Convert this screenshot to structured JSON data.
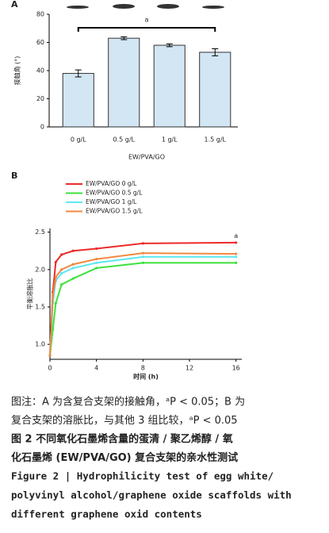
{
  "chart_data": [
    {
      "type": "bar",
      "panel": "A",
      "ylabel": "接触角 (°)",
      "xlabel": "EW/PVA/GO",
      "annotation": "a",
      "categories": [
        "0 g/L",
        "0.5 g/L",
        "1 g/L",
        "1.5 g/L"
      ],
      "values": [
        38,
        63,
        58,
        53
      ],
      "errors": [
        2.5,
        1,
        1,
        2.5
      ],
      "color": "#d3e6f4",
      "ylim": [
        0,
        80
      ],
      "yticks": [
        0,
        20,
        40,
        60,
        80
      ]
    },
    {
      "type": "line",
      "panel": "B",
      "ylabel": "平衡溶胀比",
      "xlabel": "时间 (h)",
      "annotation": "a",
      "x": [
        0,
        0.25,
        0.5,
        1,
        2,
        4,
        8,
        16
      ],
      "series": [
        {
          "name": "EW/PVA/GO 0 g/L",
          "color": "#ee2a2a",
          "values": [
            0.85,
            1.7,
            2.1,
            2.2,
            2.25,
            2.28,
            2.35,
            2.36
          ]
        },
        {
          "name": "EW/PVA/GO 0.5 g/L",
          "color": "#3ee03e",
          "values": [
            0.85,
            1.2,
            1.55,
            1.8,
            1.88,
            2.02,
            2.09,
            2.09
          ]
        },
        {
          "name": "EW/PVA/GO 1 g/L",
          "color": "#5ee8f0",
          "values": [
            0.85,
            1.55,
            1.85,
            1.95,
            2.02,
            2.09,
            2.17,
            2.17
          ]
        },
        {
          "name": "EW/PVA/GO 1.5 g/L",
          "color": "#f08a40",
          "values": [
            0.85,
            1.65,
            1.9,
            2.0,
            2.07,
            2.14,
            2.22,
            2.21
          ]
        }
      ],
      "xlim": [
        0,
        16.5
      ],
      "xticks": [
        0,
        4,
        8,
        12,
        16
      ],
      "ylim": [
        0.8,
        2.55
      ],
      "yticks": [
        {
          "value": 1,
          "label": "1.0"
        },
        {
          "value": 1.5,
          "label": "1.5"
        },
        {
          "value": 2,
          "label": "2.0"
        },
        {
          "value": 2.5,
          "label": "2.5"
        }
      ]
    }
  ],
  "caption": {
    "note": [
      "图注：A 为含复合支架的接触角，ᵃP < 0.05；B 为",
      "复合支架的溶胀比，与其他 3 组比较，ᵃP < 0.05"
    ],
    "title_cn": [
      "图 2  不同氧化石墨烯含量的蛋清 / 聚乙烯醇 / 氧",
      "化石墨烯 (EW/PVA/GO) 复合支架的亲水性测试"
    ],
    "title_en": [
      "Figure 2  |  Hydrophilicity test of egg white/",
      "polyvinyl alcohol/graphene oxide scaffolds with",
      "different graphene oxid contents"
    ]
  }
}
